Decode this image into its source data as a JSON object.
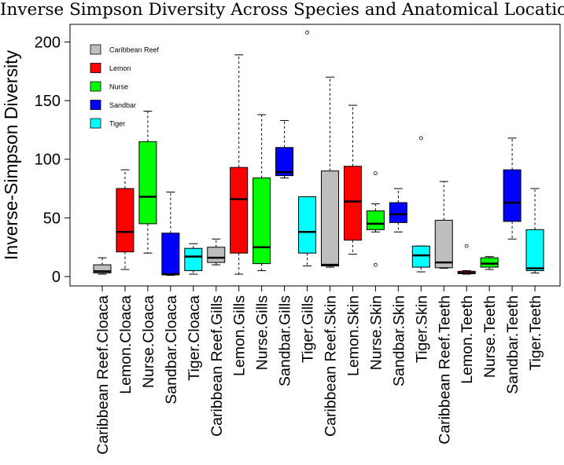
{
  "chart_data": {
    "type": "boxplot",
    "title": "Inverse Simpson Diversity Across Species and Anatomical Location",
    "xlabel": "",
    "ylabel": "Inverse-Simpson Diversity",
    "ylim": [
      -8,
      215
    ],
    "yticks": [
      0,
      50,
      100,
      150,
      200
    ],
    "grid": false,
    "legend": {
      "position": "top-left",
      "entries": [
        {
          "label": "Caribbean Reef",
          "color": "#BEBEBE"
        },
        {
          "label": "Lemon",
          "color": "#FF0000"
        },
        {
          "label": "Nurse",
          "color": "#00FF00"
        },
        {
          "label": "Sandbar",
          "color": "#0000FF"
        },
        {
          "label": "Tiger",
          "color": "#00FFFF"
        }
      ]
    },
    "categories": [
      "Caribbean Reef.Cloaca",
      "Lemon.Cloaca",
      "Nurse.Cloaca",
      "Sandbar.Cloaca",
      "Tiger.Cloaca",
      "Caribbean Reef.Gills",
      "Lemon.Gills",
      "Nurse.Gills",
      "Sandbar.Gills",
      "Tiger.Gills",
      "Caribbean Reef.Skin",
      "Lemon.Skin",
      "Nurse.Skin",
      "Sandbar.Skin",
      "Tiger.Skin",
      "Caribbean Reef.Teeth",
      "Lemon.Teeth",
      "Nurse.Teeth",
      "Sandbar.Teeth",
      "Tiger.Teeth"
    ],
    "boxes": [
      {
        "species": "Caribbean Reef",
        "color": "#BEBEBE",
        "min": 2,
        "q1": 3,
        "median": 4.5,
        "q3": 10,
        "max": 16,
        "outliers": []
      },
      {
        "species": "Lemon",
        "color": "#FF0000",
        "min": 6,
        "q1": 21,
        "median": 38,
        "q3": 75,
        "max": 91,
        "outliers": []
      },
      {
        "species": "Nurse",
        "color": "#00FF00",
        "min": 20,
        "q1": 45,
        "median": 68,
        "q3": 115,
        "max": 141,
        "outliers": []
      },
      {
        "species": "Sandbar",
        "color": "#0000FF",
        "min": 1,
        "q1": 1.5,
        "median": 2,
        "q3": 37,
        "max": 72,
        "outliers": []
      },
      {
        "species": "Tiger",
        "color": "#00FFFF",
        "min": 2,
        "q1": 5,
        "median": 17,
        "q3": 24,
        "max": 28,
        "outliers": []
      },
      {
        "species": "Caribbean Reef",
        "color": "#BEBEBE",
        "min": 10,
        "q1": 12,
        "median": 16,
        "q3": 25,
        "max": 32,
        "outliers": []
      },
      {
        "species": "Lemon",
        "color": "#FF0000",
        "min": 2,
        "q1": 20,
        "median": 66,
        "q3": 93,
        "max": 189,
        "outliers": []
      },
      {
        "species": "Nurse",
        "color": "#00FF00",
        "min": 5,
        "q1": 11,
        "median": 25,
        "q3": 84,
        "max": 138,
        "outliers": []
      },
      {
        "species": "Sandbar",
        "color": "#0000FF",
        "min": 84,
        "q1": 86,
        "median": 89,
        "q3": 110,
        "max": 133,
        "outliers": []
      },
      {
        "species": "Tiger",
        "color": "#00FFFF",
        "min": 9,
        "q1": 20,
        "median": 38,
        "q3": 68,
        "max": 68,
        "outliers": [
          208
        ]
      },
      {
        "species": "Caribbean Reef",
        "color": "#BEBEBE",
        "min": 8,
        "q1": 9,
        "median": 10,
        "q3": 90,
        "max": 170,
        "outliers": []
      },
      {
        "species": "Lemon",
        "color": "#FF0000",
        "min": 19,
        "q1": 31,
        "median": 64,
        "q3": 94,
        "max": 146,
        "outliers": []
      },
      {
        "species": "Nurse",
        "color": "#00FF00",
        "min": 38,
        "q1": 40,
        "median": 45,
        "q3": 56,
        "max": 62,
        "outliers": [
          10,
          88
        ]
      },
      {
        "species": "Sandbar",
        "color": "#0000FF",
        "min": 38,
        "q1": 46,
        "median": 53,
        "q3": 63,
        "max": 75,
        "outliers": []
      },
      {
        "species": "Tiger",
        "color": "#00FFFF",
        "min": 4,
        "q1": 8,
        "median": 18,
        "q3": 26,
        "max": 26,
        "outliers": [
          118
        ]
      },
      {
        "species": "Caribbean Reef",
        "color": "#BEBEBE",
        "min": 7,
        "q1": 7.5,
        "median": 12,
        "q3": 48,
        "max": 81,
        "outliers": []
      },
      {
        "species": "Lemon",
        "color": "#FF0000",
        "min": 2,
        "q1": 2.5,
        "median": 3,
        "q3": 4.5,
        "max": 5,
        "outliers": [
          26
        ]
      },
      {
        "species": "Nurse",
        "color": "#00FF00",
        "min": 6,
        "q1": 8,
        "median": 11,
        "q3": 16,
        "max": 17,
        "outliers": []
      },
      {
        "species": "Sandbar",
        "color": "#0000FF",
        "min": 32,
        "q1": 47,
        "median": 63,
        "q3": 91,
        "max": 118,
        "outliers": []
      },
      {
        "species": "Tiger",
        "color": "#00FFFF",
        "min": 3,
        "q1": 5,
        "median": 7,
        "q3": 40,
        "max": 75,
        "outliers": []
      }
    ]
  }
}
